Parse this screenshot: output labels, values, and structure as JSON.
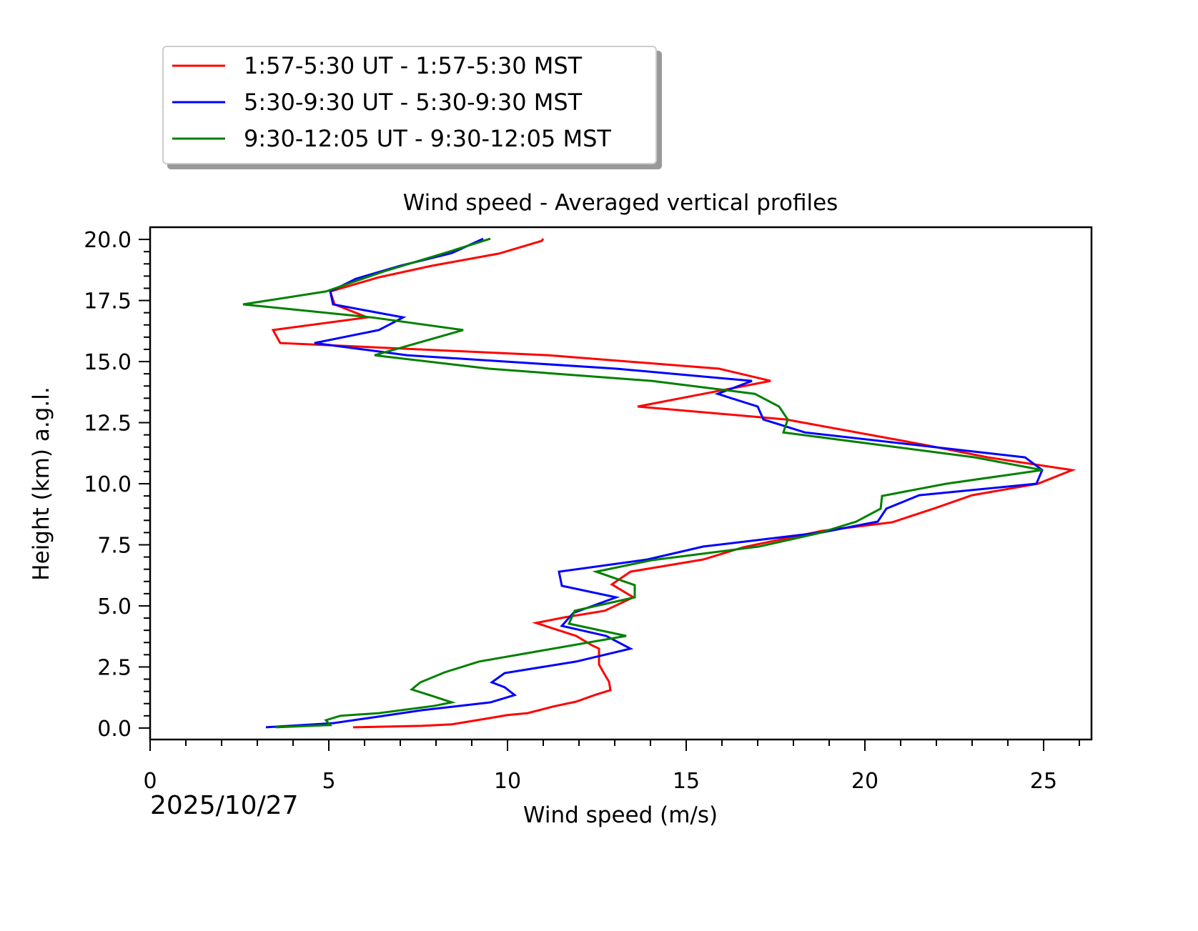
{
  "chart_data": {
    "type": "line",
    "title": "Wind speed - Averaged vertical profiles",
    "xlabel": "Wind speed (m/s)",
    "ylabel": "Height (km) a.g.l.",
    "date_label": "2025/10/27",
    "xlim": [
      0,
      26.34
    ],
    "ylim": [
      -0.47,
      20.5
    ],
    "xticks": [
      0,
      5,
      10,
      15,
      20,
      25
    ],
    "xtick_labels": [
      "0",
      "5",
      "10",
      "15",
      "20",
      "25"
    ],
    "yticks": [
      0,
      2.5,
      5,
      7.5,
      10,
      12.5,
      15,
      17.5,
      20
    ],
    "ytick_labels": [
      "0.0",
      "2.5",
      "5.0",
      "7.5",
      "10.0",
      "12.5",
      "15.0",
      "17.5",
      "20.0"
    ],
    "grid": false,
    "legend_placement": "above plot, top-left",
    "series": [
      {
        "name": "1:57-5:30 UT - 1:57-5:30 MST",
        "color": "#ff0000",
        "points": [
          [
            5.68,
            0.03
          ],
          [
            7.6,
            0.09
          ],
          [
            8.44,
            0.15
          ],
          [
            9.52,
            0.41
          ],
          [
            10.0,
            0.53
          ],
          [
            10.56,
            0.61
          ],
          [
            11.28,
            0.88
          ],
          [
            11.92,
            1.08
          ],
          [
            12.48,
            1.37
          ],
          [
            12.88,
            1.55
          ],
          [
            12.84,
            1.9
          ],
          [
            12.72,
            2.19
          ],
          [
            12.56,
            2.6
          ],
          [
            12.56,
            3.25
          ],
          [
            12.36,
            3.39
          ],
          [
            11.92,
            3.77
          ],
          [
            10.8,
            4.3
          ],
          [
            11.6,
            4.53
          ],
          [
            12.72,
            4.8
          ],
          [
            13.52,
            5.35
          ],
          [
            12.92,
            5.88
          ],
          [
            13.44,
            6.4
          ],
          [
            15.48,
            6.9
          ],
          [
            16.6,
            7.4
          ],
          [
            18.8,
            8.07
          ],
          [
            20.76,
            8.42
          ],
          [
            21.92,
            8.98
          ],
          [
            23.0,
            9.53
          ],
          [
            24.84,
            10.0
          ],
          [
            25.8,
            10.56
          ],
          [
            23.44,
            11.08
          ],
          [
            21.64,
            11.6
          ],
          [
            17.8,
            12.63
          ],
          [
            13.64,
            13.16
          ],
          [
            17.36,
            14.21
          ],
          [
            15.92,
            14.71
          ],
          [
            11.16,
            15.26
          ],
          [
            3.64,
            15.76
          ],
          [
            3.44,
            16.29
          ],
          [
            6.08,
            16.81
          ],
          [
            5.16,
            17.34
          ],
          [
            5.04,
            17.87
          ],
          [
            6.4,
            18.45
          ],
          [
            7.88,
            18.92
          ],
          [
            9.76,
            19.42
          ],
          [
            10.96,
            19.94
          ],
          [
            11.0,
            20.03
          ]
        ]
      },
      {
        "name": "5:30-9:30 UT - 5:30-9:30 MST",
        "color": "#0000ff",
        "points": [
          [
            3.24,
            0.03
          ],
          [
            5.12,
            0.2
          ],
          [
            6.4,
            0.47
          ],
          [
            7.6,
            0.73
          ],
          [
            9.52,
            1.05
          ],
          [
            10.2,
            1.35
          ],
          [
            9.92,
            1.67
          ],
          [
            9.56,
            1.87
          ],
          [
            9.92,
            2.25
          ],
          [
            11.92,
            2.72
          ],
          [
            13.44,
            3.25
          ],
          [
            12.76,
            3.77
          ],
          [
            11.52,
            4.18
          ],
          [
            11.84,
            4.71
          ],
          [
            13.04,
            5.35
          ],
          [
            11.52,
            5.82
          ],
          [
            11.44,
            6.4
          ],
          [
            13.92,
            6.9
          ],
          [
            15.48,
            7.43
          ],
          [
            18.8,
            8.01
          ],
          [
            20.36,
            8.45
          ],
          [
            20.6,
            8.98
          ],
          [
            21.52,
            9.53
          ],
          [
            24.8,
            10.0
          ],
          [
            24.96,
            10.56
          ],
          [
            24.48,
            11.08
          ],
          [
            18.32,
            12.1
          ],
          [
            17.16,
            12.63
          ],
          [
            17.0,
            13.16
          ],
          [
            15.88,
            13.68
          ],
          [
            16.84,
            14.21
          ],
          [
            13.04,
            14.71
          ],
          [
            7.2,
            15.26
          ],
          [
            4.6,
            15.76
          ],
          [
            6.4,
            16.29
          ],
          [
            7.08,
            16.81
          ],
          [
            5.12,
            17.34
          ],
          [
            5.04,
            17.87
          ],
          [
            5.76,
            18.39
          ],
          [
            7.0,
            18.92
          ],
          [
            8.44,
            19.44
          ],
          [
            9.32,
            20.03
          ]
        ]
      },
      {
        "name": "9:30-12:05 UT - 9:30-12:05 MST",
        "color": "#008000",
        "points": [
          [
            3.52,
            0.03
          ],
          [
            5.04,
            0.12
          ],
          [
            4.92,
            0.32
          ],
          [
            5.32,
            0.5
          ],
          [
            6.4,
            0.61
          ],
          [
            7.96,
            0.91
          ],
          [
            8.44,
            1.05
          ],
          [
            7.88,
            1.32
          ],
          [
            7.32,
            1.58
          ],
          [
            7.56,
            1.87
          ],
          [
            8.24,
            2.28
          ],
          [
            9.2,
            2.72
          ],
          [
            13.32,
            3.77
          ],
          [
            11.72,
            4.27
          ],
          [
            11.88,
            4.8
          ],
          [
            13.56,
            5.35
          ],
          [
            13.56,
            5.85
          ],
          [
            12.48,
            6.4
          ],
          [
            14.04,
            6.87
          ],
          [
            17.04,
            7.43
          ],
          [
            18.72,
            7.98
          ],
          [
            19.76,
            8.45
          ],
          [
            20.44,
            8.98
          ],
          [
            20.48,
            9.5
          ],
          [
            22.28,
            10.0
          ],
          [
            24.96,
            10.56
          ],
          [
            23.08,
            11.08
          ],
          [
            17.72,
            12.1
          ],
          [
            17.84,
            12.63
          ],
          [
            17.6,
            13.16
          ],
          [
            16.92,
            13.68
          ],
          [
            14.04,
            14.21
          ],
          [
            9.48,
            14.71
          ],
          [
            6.28,
            15.26
          ],
          [
            8.76,
            16.29
          ],
          [
            6.2,
            16.81
          ],
          [
            2.6,
            17.34
          ],
          [
            4.92,
            17.87
          ],
          [
            6.52,
            18.68
          ],
          [
            8.24,
            19.44
          ],
          [
            9.52,
            20.03
          ]
        ]
      }
    ]
  }
}
